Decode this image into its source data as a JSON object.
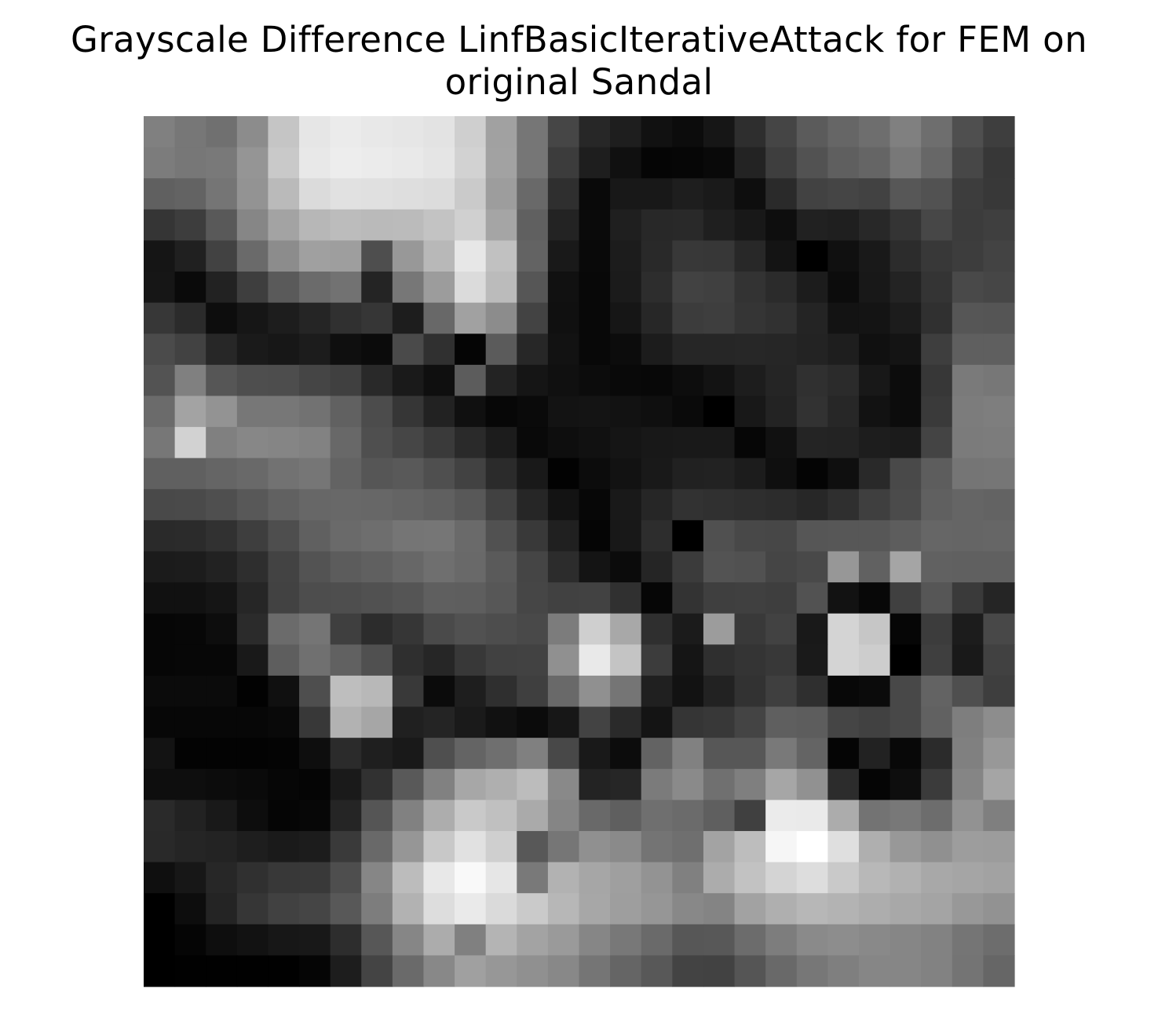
{
  "chart_data": {
    "type": "heatmap",
    "title_lines": [
      "Grayscale Difference LinfBasicIterativeAttack for FEM on",
      "original Sandal"
    ],
    "colormap": "gray",
    "value_range": [
      0,
      255
    ],
    "axes_visible": false,
    "rows": 28,
    "cols": 28,
    "values": [
      [
        128,
        119,
        112,
        140,
        197,
        230,
        235,
        232,
        230,
        227,
        207,
        161,
        118,
        70,
        39,
        30,
        17,
        12,
        22,
        46,
        69,
        91,
        102,
        110,
        128,
        110,
        79,
        62
      ],
      [
        124,
        119,
        121,
        149,
        201,
        232,
        237,
        235,
        233,
        229,
        210,
        162,
        118,
        60,
        30,
        16,
        5,
        6,
        9,
        35,
        62,
        82,
        95,
        101,
        120,
        103,
        71,
        55
      ],
      [
        96,
        99,
        117,
        147,
        186,
        219,
        225,
        224,
        222,
        220,
        202,
        157,
        105,
        47,
        9,
        24,
        24,
        30,
        26,
        14,
        42,
        66,
        69,
        66,
        87,
        82,
        61,
        56
      ],
      [
        53,
        61,
        89,
        134,
        163,
        183,
        188,
        186,
        187,
        195,
        208,
        165,
        96,
        35,
        10,
        31,
        40,
        41,
        31,
        24,
        14,
        33,
        31,
        40,
        52,
        71,
        60,
        63
      ],
      [
        21,
        32,
        66,
        106,
        140,
        160,
        158,
        78,
        152,
        184,
        231,
        193,
        99,
        25,
        9,
        28,
        41,
        56,
        55,
        40,
        20,
        0,
        16,
        25,
        44,
        56,
        61,
        67
      ],
      [
        22,
        10,
        34,
        62,
        90,
        107,
        114,
        36,
        119,
        156,
        219,
        187,
        86,
        17,
        8,
        27,
        45,
        66,
        64,
        51,
        43,
        28,
        12,
        24,
        35,
        52,
        73,
        70
      ],
      [
        55,
        43,
        13,
        22,
        29,
        37,
        48,
        54,
        29,
        104,
        161,
        140,
        67,
        16,
        8,
        22,
        39,
        60,
        62,
        53,
        49,
        36,
        19,
        20,
        28,
        48,
        86,
        85
      ],
      [
        75,
        66,
        39,
        26,
        23,
        28,
        15,
        11,
        74,
        48,
        5,
        91,
        39,
        18,
        8,
        12,
        28,
        38,
        38,
        39,
        38,
        35,
        30,
        16,
        20,
        62,
        95,
        95
      ],
      [
        83,
        128,
        86,
        78,
        77,
        69,
        64,
        41,
        26,
        15,
        92,
        35,
        21,
        16,
        12,
        9,
        8,
        13,
        19,
        29,
        37,
        48,
        43,
        24,
        12,
        55,
        122,
        119
      ],
      [
        107,
        163,
        147,
        119,
        119,
        114,
        97,
        76,
        54,
        34,
        16,
        7,
        10,
        19,
        20,
        18,
        15,
        10,
        0,
        24,
        35,
        50,
        39,
        18,
        12,
        58,
        124,
        126
      ],
      [
        119,
        210,
        128,
        135,
        133,
        130,
        104,
        79,
        70,
        58,
        42,
        28,
        9,
        14,
        17,
        21,
        24,
        25,
        25,
        6,
        17,
        36,
        35,
        29,
        27,
        68,
        123,
        124
      ],
      [
        96,
        96,
        101,
        105,
        114,
        118,
        99,
        86,
        89,
        79,
        66,
        43,
        25,
        2,
        12,
        18,
        25,
        33,
        34,
        28,
        15,
        4,
        15,
        41,
        73,
        93,
        117,
        118
      ],
      [
        73,
        74,
        79,
        88,
        97,
        103,
        104,
        103,
        100,
        96,
        88,
        65,
        38,
        19,
        7,
        25,
        38,
        50,
        48,
        46,
        44,
        39,
        47,
        63,
        75,
        96,
        101,
        99
      ],
      [
        42,
        43,
        49,
        62,
        78,
        96,
        106,
        110,
        117,
        118,
        106,
        81,
        57,
        32,
        5,
        24,
        45,
        0,
        80,
        72,
        71,
        86,
        87,
        87,
        93,
        102,
        101,
        102
      ],
      [
        27,
        28,
        34,
        46,
        67,
        83,
        92,
        96,
        103,
        111,
        105,
        90,
        69,
        44,
        20,
        11,
        37,
        59,
        83,
        81,
        69,
        73,
        151,
        97,
        165,
        97,
        96,
        96
      ],
      [
        17,
        17,
        21,
        38,
        66,
        77,
        78,
        81,
        85,
        95,
        94,
        87,
        70,
        65,
        66,
        48,
        6,
        51,
        63,
        64,
        62,
        82,
        18,
        8,
        64,
        86,
        58,
        37
      ],
      [
        6,
        7,
        13,
        43,
        107,
        117,
        63,
        44,
        54,
        74,
        81,
        77,
        73,
        124,
        207,
        168,
        47,
        27,
        156,
        57,
        66,
        25,
        212,
        198,
        6,
        60,
        28,
        72
      ],
      [
        6,
        7,
        7,
        25,
        94,
        112,
        97,
        80,
        47,
        38,
        56,
        65,
        66,
        144,
        233,
        196,
        60,
        21,
        47,
        52,
        56,
        26,
        212,
        205,
        0,
        63,
        25,
        65
      ],
      [
        11,
        11,
        11,
        2,
        16,
        78,
        190,
        184,
        57,
        11,
        30,
        47,
        63,
        105,
        144,
        117,
        32,
        18,
        34,
        50,
        63,
        47,
        8,
        11,
        72,
        99,
        79,
        62
      ],
      [
        7,
        7,
        7,
        7,
        9,
        56,
        178,
        166,
        32,
        36,
        26,
        17,
        11,
        23,
        67,
        42,
        20,
        53,
        56,
        68,
        95,
        93,
        69,
        65,
        72,
        97,
        126,
        141
      ],
      [
        19,
        3,
        3,
        3,
        4,
        14,
        43,
        31,
        25,
        79,
        100,
        111,
        128,
        72,
        25,
        12,
        99,
        129,
        87,
        87,
        121,
        100,
        5,
        34,
        8,
        43,
        128,
        152
      ],
      [
        14,
        14,
        12,
        10,
        6,
        5,
        26,
        49,
        89,
        129,
        167,
        175,
        188,
        137,
        35,
        38,
        123,
        138,
        112,
        127,
        166,
        145,
        44,
        5,
        14,
        59,
        133,
        165
      ],
      [
        42,
        34,
        25,
        13,
        5,
        7,
        37,
        85,
        129,
        173,
        201,
        192,
        170,
        133,
        105,
        95,
        111,
        107,
        95,
        64,
        235,
        234,
        172,
        115,
        120,
        109,
        146,
        127
      ],
      [
        41,
        37,
        35,
        30,
        26,
        28,
        58,
        105,
        150,
        200,
        225,
        207,
        88,
        118,
        144,
        138,
        116,
        111,
        163,
        189,
        246,
        255,
        223,
        175,
        152,
        144,
        157,
        156
      ],
      [
        15,
        23,
        39,
        48,
        56,
        57,
        78,
        134,
        188,
        232,
        249,
        230,
        121,
        178,
        166,
        159,
        147,
        128,
        172,
        194,
        212,
        221,
        201,
        184,
        177,
        168,
        165,
        162
      ],
      [
        0,
        13,
        36,
        54,
        65,
        69,
        88,
        125,
        178,
        221,
        234,
        218,
        202,
        183,
        167,
        158,
        150,
        136,
        132,
        162,
        175,
        183,
        179,
        173,
        168,
        164,
        152,
        146
      ],
      [
        0,
        5,
        14,
        18,
        23,
        24,
        45,
        87,
        134,
        172,
        128,
        180,
        163,
        154,
        134,
        120,
        106,
        87,
        88,
        108,
        125,
        138,
        141,
        137,
        134,
        130,
        117,
        109
      ],
      [
        0,
        1,
        1,
        1,
        1,
        5,
        29,
        68,
        106,
        136,
        160,
        151,
        144,
        136,
        117,
        101,
        88,
        67,
        66,
        85,
        105,
        119,
        127,
        134,
        134,
        130,
        116,
        102
      ]
    ]
  }
}
